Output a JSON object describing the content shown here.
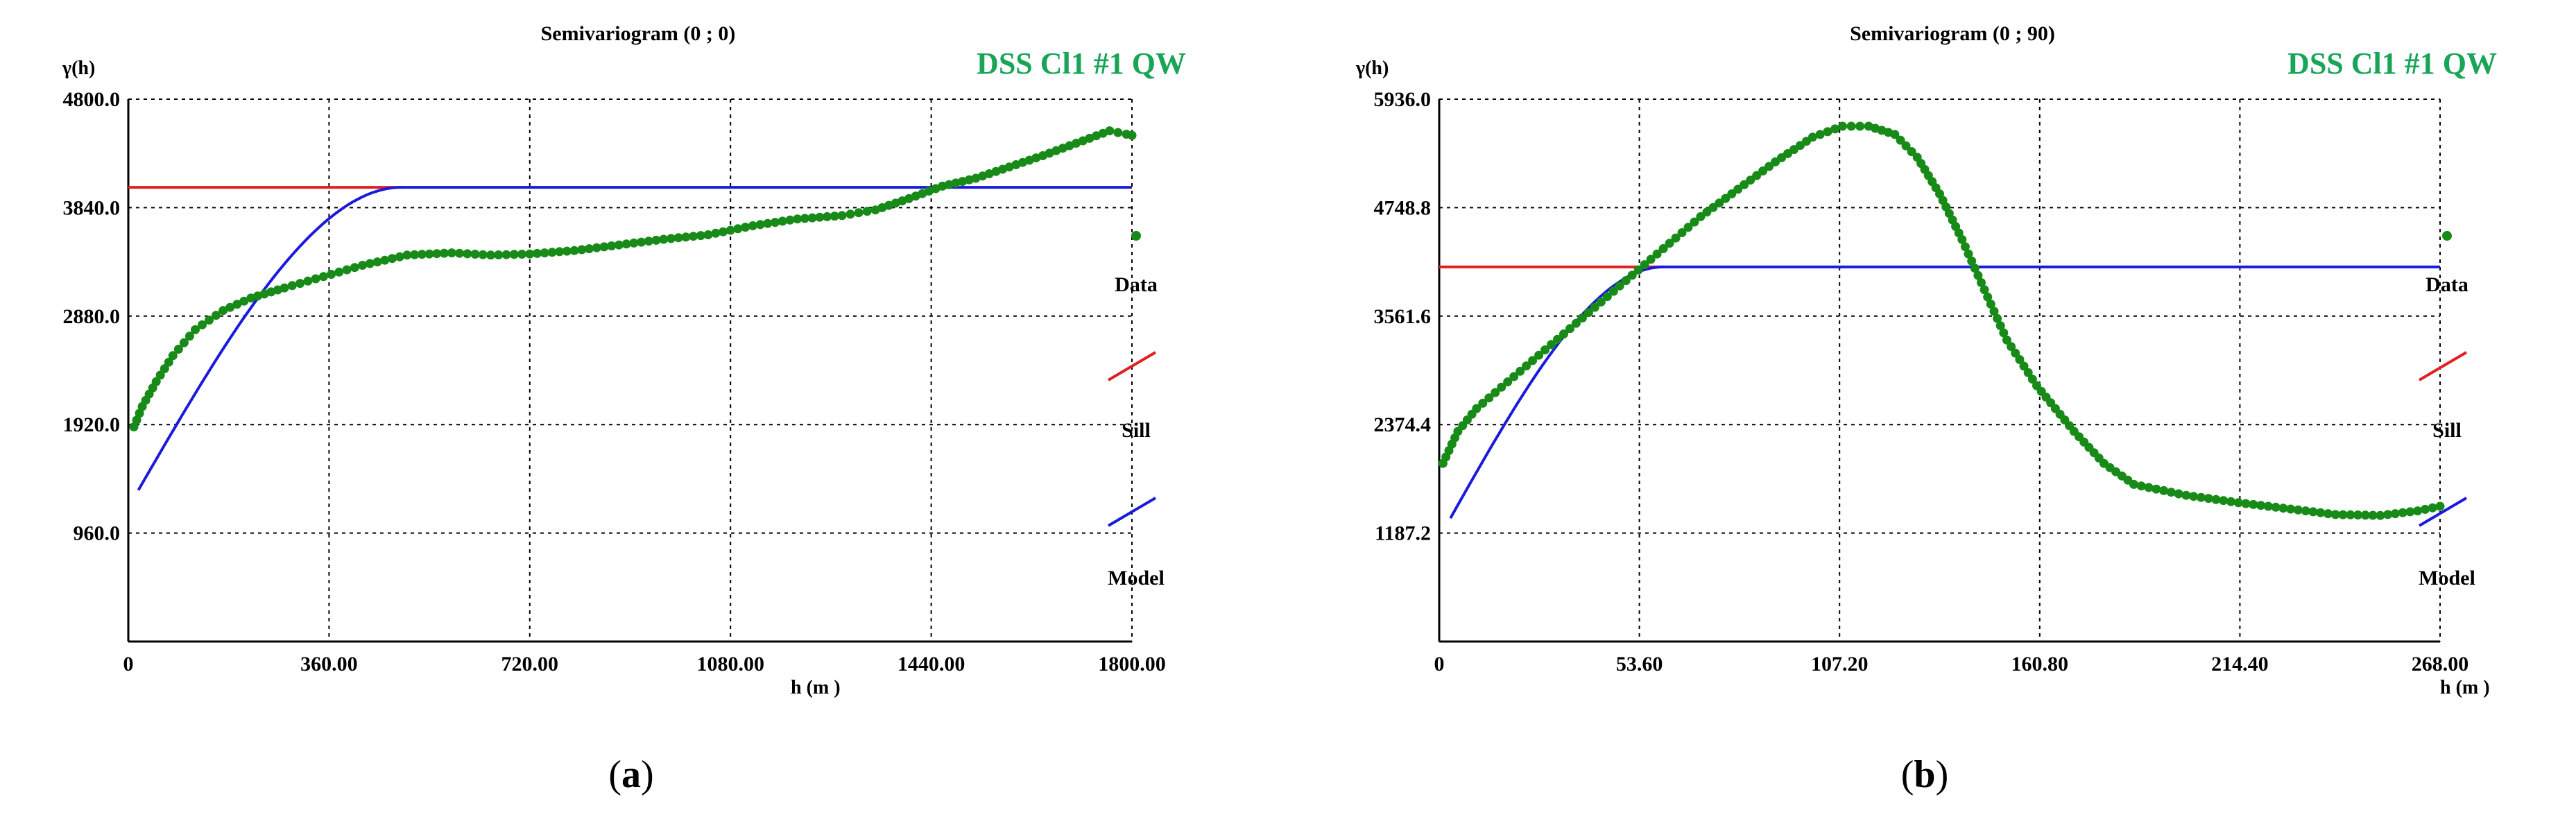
{
  "chart_data": [
    {
      "type": "scatter",
      "title": "Semivariogram (0 ;  0)",
      "brand": "DSS Cl1 #1 QW",
      "ylabel": "γ(h)",
      "xlabel": "h (m )",
      "caption_letter": "a",
      "xlim": [
        0,
        1800
      ],
      "ylim": [
        0,
        4800
      ],
      "x_ticks": [
        "0",
        "360.00",
        "720.00",
        "1080.00",
        "1440.00",
        "1800.00"
      ],
      "y_ticks": [
        "960.0",
        "1920.0",
        "2880.0",
        "3840.0",
        "4800.0"
      ],
      "grid": true,
      "legend": {
        "position": "right",
        "items": [
          "Data",
          "Sill",
          "Model"
        ]
      },
      "sill": 4020,
      "sill_range": 490,
      "model_start": [
        18,
        1340
      ],
      "series": [
        {
          "name": "Data",
          "color": "#178a17",
          "points": [
            [
              10,
              1900
            ],
            [
              25,
              2080
            ],
            [
              50,
              2300
            ],
            [
              80,
              2530
            ],
            [
              120,
              2760
            ],
            [
              170,
              2930
            ],
            [
              220,
              3040
            ],
            [
              280,
              3130
            ],
            [
              350,
              3230
            ],
            [
              420,
              3330
            ],
            [
              500,
              3420
            ],
            [
              580,
              3440
            ],
            [
              650,
              3420
            ],
            [
              720,
              3430
            ],
            [
              800,
              3460
            ],
            [
              880,
              3510
            ],
            [
              960,
              3560
            ],
            [
              1040,
              3600
            ],
            [
              1120,
              3680
            ],
            [
              1200,
              3740
            ],
            [
              1280,
              3770
            ],
            [
              1340,
              3820
            ],
            [
              1400,
              3920
            ],
            [
              1460,
              4030
            ],
            [
              1520,
              4100
            ],
            [
              1580,
              4200
            ],
            [
              1640,
              4300
            ],
            [
              1700,
              4410
            ],
            [
              1760,
              4520
            ],
            [
              1790,
              4490
            ],
            [
              1800,
              4480
            ]
          ]
        },
        {
          "name": "Sill",
          "color": "#e02020"
        },
        {
          "name": "Model",
          "color": "#1a1adc"
        }
      ]
    },
    {
      "type": "scatter",
      "title": "Semivariogram (0 ; 90)",
      "brand": "DSS Cl1 #1 QW",
      "ylabel": "γ(h)",
      "xlabel": "h (m )",
      "caption_letter": "b",
      "xlim": [
        0,
        268
      ],
      "ylim": [
        0,
        5936
      ],
      "x_ticks": [
        "0",
        "53.60",
        "107.20",
        "160.80",
        "214.40",
        "268.00"
      ],
      "y_ticks": [
        "1187.2",
        "2374.4",
        "3561.6",
        "4748.8",
        "5936.0"
      ],
      "grid": true,
      "legend": {
        "position": "right",
        "items": [
          "Data",
          "Sill",
          "Model"
        ]
      },
      "sill": 4100,
      "sill_range": 60,
      "model_start": [
        3,
        1350
      ],
      "series": [
        {
          "name": "Data",
          "color": "#178a17",
          "points": [
            [
              1,
              1950
            ],
            [
              5,
              2300
            ],
            [
              10,
              2550
            ],
            [
              20,
              2900
            ],
            [
              30,
              3250
            ],
            [
              40,
              3600
            ],
            [
              50,
              3950
            ],
            [
              60,
              4300
            ],
            [
              70,
              4650
            ],
            [
              80,
              4950
            ],
            [
              90,
              5250
            ],
            [
              100,
              5520
            ],
            [
              108,
              5640
            ],
            [
              115,
              5640
            ],
            [
              122,
              5550
            ],
            [
              128,
              5300
            ],
            [
              134,
              4900
            ],
            [
              140,
              4400
            ],
            [
              146,
              3850
            ],
            [
              152,
              3300
            ],
            [
              160,
              2800
            ],
            [
              170,
              2300
            ],
            [
              178,
              1950
            ],
            [
              186,
              1720
            ],
            [
              200,
              1600
            ],
            [
              214,
              1520
            ],
            [
              228,
              1450
            ],
            [
              240,
              1390
            ],
            [
              252,
              1380
            ],
            [
              262,
              1430
            ],
            [
              268,
              1480
            ]
          ]
        },
        {
          "name": "Sill",
          "color": "#e02020"
        },
        {
          "name": "Model",
          "color": "#1a1adc"
        }
      ]
    }
  ]
}
